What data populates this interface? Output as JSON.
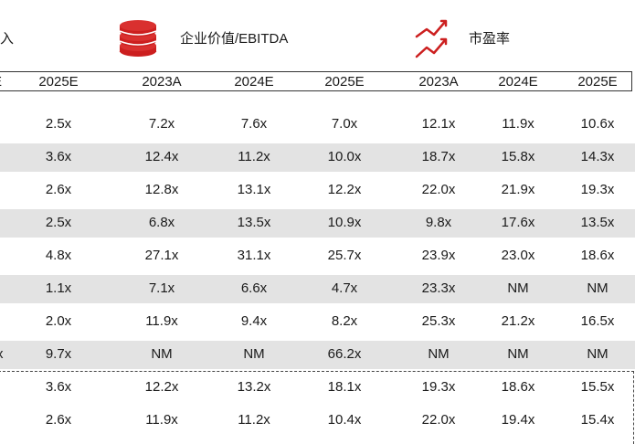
{
  "header": {
    "left_cut": "入",
    "ev_ebitda": "企业价值/EBITDA",
    "pe": "市盈率",
    "icons": [
      "coin-stack-icon",
      "trend-line-icon"
    ],
    "accent": "#cc1f1f"
  },
  "columns": [
    "E",
    "2025E",
    "2023A",
    "2024E",
    "2025E",
    "2023A",
    "2024E",
    "2025E"
  ],
  "rows": [
    {
      "band": false,
      "cells": [
        "",
        "2.5x",
        "7.2x",
        "7.6x",
        "7.0x",
        "12.1x",
        "11.9x",
        "10.6x"
      ]
    },
    {
      "band": true,
      "cells": [
        "",
        "3.6x",
        "12.4x",
        "11.2x",
        "10.0x",
        "18.7x",
        "15.8x",
        "14.3x"
      ]
    },
    {
      "band": false,
      "cells": [
        "",
        "2.6x",
        "12.8x",
        "13.1x",
        "12.2x",
        "22.0x",
        "21.9x",
        "19.3x"
      ]
    },
    {
      "band": true,
      "cells": [
        "",
        "2.5x",
        "6.8x",
        "13.5x",
        "10.9x",
        "9.8x",
        "17.6x",
        "13.5x"
      ]
    },
    {
      "band": false,
      "cells": [
        "",
        "4.8x",
        "27.1x",
        "31.1x",
        "25.7x",
        "23.9x",
        "23.0x",
        "18.6x"
      ]
    },
    {
      "band": true,
      "cells": [
        "",
        "1.1x",
        "7.1x",
        "6.6x",
        "4.7x",
        "23.3x",
        "NM",
        "NM"
      ]
    },
    {
      "band": false,
      "cells": [
        "",
        "2.0x",
        "11.9x",
        "9.4x",
        "8.2x",
        "25.3x",
        "21.2x",
        "16.5x"
      ]
    },
    {
      "band": true,
      "cells": [
        "x",
        "9.7x",
        "NM",
        "NM",
        "66.2x",
        "NM",
        "NM",
        "NM"
      ]
    },
    {
      "band": false,
      "cells": [
        "",
        "3.6x",
        "12.2x",
        "13.2x",
        "18.1x",
        "19.3x",
        "18.6x",
        "15.5x"
      ]
    },
    {
      "band": false,
      "cells": [
        "",
        "2.6x",
        "11.9x",
        "11.2x",
        "10.4x",
        "22.0x",
        "19.4x",
        "15.4x"
      ]
    }
  ]
}
